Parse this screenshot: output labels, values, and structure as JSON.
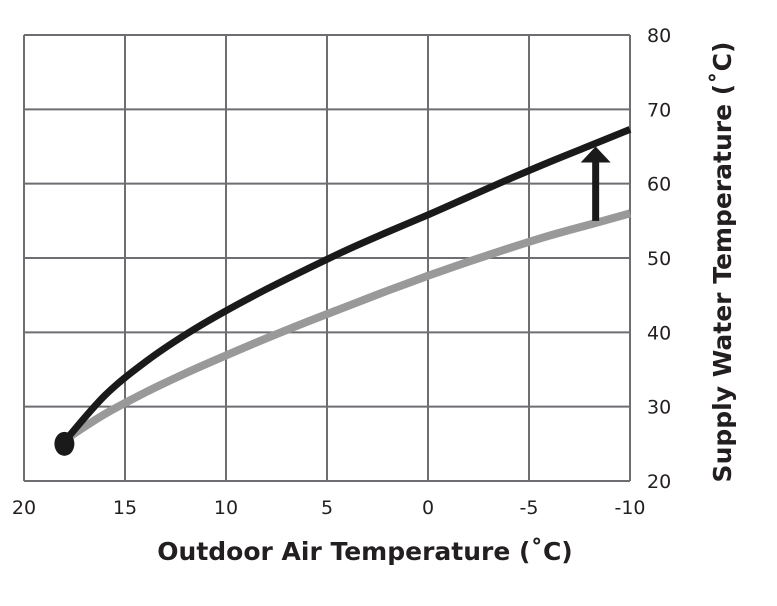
{
  "chart_data": {
    "type": "line",
    "xlabel": "Outdoor Air Temperature (˚C)",
    "ylabel": "Supply Water Temperature (˚C)",
    "x_ticks": [
      "20",
      "15",
      "10",
      "5",
      "0",
      "-5",
      "-10"
    ],
    "y_ticks": [
      "20",
      "30",
      "40",
      "50",
      "60",
      "70",
      "80"
    ],
    "xlim": [
      20,
      -10
    ],
    "ylim": [
      20,
      80
    ],
    "x_axis_reversed": true,
    "y_axis_side": "right",
    "grid": true,
    "series": [
      {
        "color": "#999999",
        "x": [
          18,
          16,
          14,
          12,
          10,
          8,
          6,
          4,
          2,
          0,
          -2,
          -4,
          -6,
          -8,
          -10
        ],
        "y": [
          25.5,
          29.0,
          31.9,
          34.5,
          36.9,
          39.2,
          41.4,
          43.5,
          45.6,
          47.6,
          49.5,
          51.3,
          53.0,
          54.5,
          56.0
        ]
      },
      {
        "color": "#1a1a1a",
        "x": [
          18,
          16,
          14,
          12,
          10,
          8,
          6,
          4,
          2,
          0,
          -2,
          -4,
          -6,
          -8,
          -10
        ],
        "y": [
          25.3,
          31.5,
          36.0,
          39.7,
          42.9,
          45.8,
          48.5,
          51.1,
          53.5,
          55.8,
          58.2,
          60.6,
          62.9,
          65.1,
          67.3
        ]
      }
    ],
    "start_point": {
      "x": 18,
      "y": 25
    },
    "arrow": {
      "x": -8.3,
      "from_y": 55,
      "to_y": 65
    }
  }
}
